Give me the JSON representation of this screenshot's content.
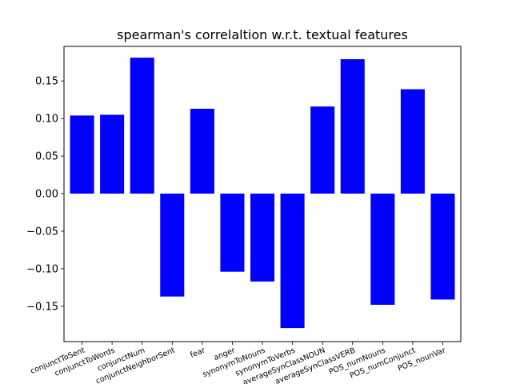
{
  "chart_data": {
    "type": "bar",
    "title": "spearman's correlaltion w.r.t. textual features",
    "xlabel": "",
    "ylabel": "",
    "categories": [
      "conjunctToSent",
      "conjunctToWords",
      "conjunctNum",
      "conjunctNeighborSent",
      "fear",
      "anger",
      "synonymToNouns",
      "synonymToVerbs",
      "averageSynClassNOUN",
      "averageSynClassVERB",
      "POS_numNouns",
      "POS_numConjunct",
      "POS_nounVar"
    ],
    "values": [
      0.104,
      0.105,
      0.181,
      -0.137,
      0.113,
      -0.104,
      -0.117,
      -0.179,
      0.116,
      0.179,
      -0.148,
      0.139,
      -0.141
    ],
    "ylim": [
      -0.197,
      0.196
    ],
    "yticks": [
      -0.15,
      -0.1,
      -0.05,
      0.0,
      0.05,
      0.1,
      0.15
    ],
    "ytick_labels": [
      "−0.15",
      "−0.10",
      "−0.05",
      "0.00",
      "0.05",
      "0.10",
      "0.15"
    ],
    "bar_color": "#0000ff",
    "grid": false,
    "legend": "none"
  }
}
